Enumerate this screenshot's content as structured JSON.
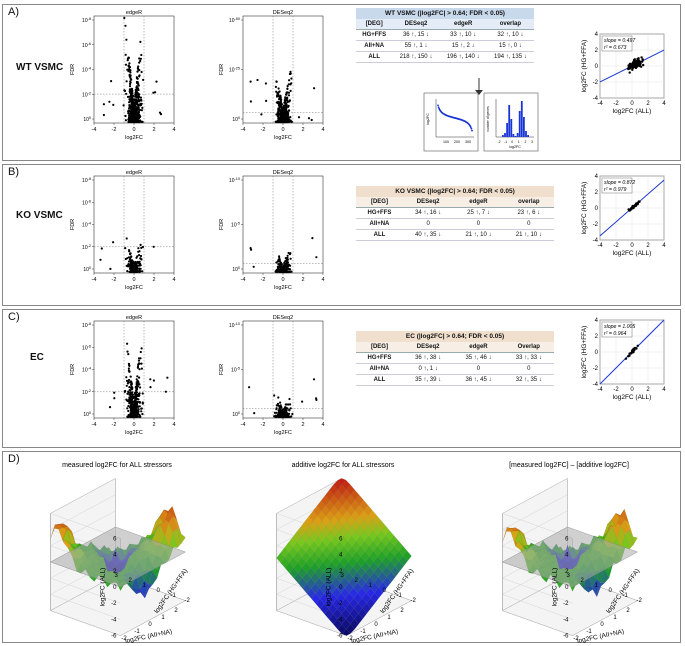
{
  "panels": {
    "A": {
      "label": "A)",
      "row_label": "WT VSMC"
    },
    "B": {
      "label": "B)",
      "row_label": "KO VSMC"
    },
    "C": {
      "label": "C)",
      "row_label": "EC"
    },
    "D": {
      "label": "D)"
    }
  },
  "volcano": {
    "edger_title": "edgeR",
    "deseq_title": "DESeq2",
    "xlabel": "log2FC",
    "ylabel": "FDR",
    "x_ticks": [
      "-4",
      "-2",
      "0",
      "2",
      "4"
    ],
    "edger_y_ticks": [
      "10-8",
      "10-6",
      "10-4",
      "10-2",
      "100"
    ],
    "deseq_y_ticks_A": [
      "10-50",
      "10-25",
      "100"
    ],
    "deseq_y_ticks_B": [
      "10-10",
      "10-5",
      "100"
    ],
    "deseq_y_ticks_C": [
      "10-10",
      "10-5",
      "100"
    ]
  },
  "tables": {
    "A": {
      "caption": "WT VSMC (|log2FC| > 0.64; FDR < 0.05)",
      "headers": [
        "[DEG]",
        "DESeq2",
        "edgeR",
        "overlap"
      ],
      "rows": [
        [
          "HG+FFS",
          "36 ↑, 15 ↓",
          "33 ↑, 10 ↓",
          "32 ↑, 10 ↓"
        ],
        [
          "AII+NA",
          "55 ↑, 1 ↓",
          "15 ↑, 2 ↓",
          "15 ↑, 0 ↓"
        ],
        [
          "ALL",
          "218 ↑, 150 ↓",
          "196 ↑, 140 ↓",
          "194 ↑, 135 ↓"
        ]
      ]
    },
    "B": {
      "caption": "KO VSMC (|log2FC| > 0.64; FDR < 0.05)",
      "headers": [
        "[DEG]",
        "DESeq2",
        "edgeR",
        "overlap"
      ],
      "rows": [
        [
          "HG+FFS",
          "34 ↑, 16 ↓",
          "25 ↑, 7 ↓",
          "23 ↑, 6 ↓"
        ],
        [
          "AII+NA",
          "0",
          "0",
          "0"
        ],
        [
          "ALL",
          "40 ↑, 35 ↓",
          "21 ↑, 10 ↓",
          "21 ↑, 10 ↓"
        ]
      ]
    },
    "C": {
      "caption": "EC (|log2FC| > 0.64; FDR < 0.05)",
      "headers": [
        "[DEG]",
        "DESeq2",
        "edgeR",
        "Overlap"
      ],
      "rows": [
        [
          "HG+FFS",
          "36 ↑, 38 ↓",
          "35 ↑, 46 ↓",
          "33 ↑, 33 ↓"
        ],
        [
          "AII+NA",
          "0 ↑, 1 ↓",
          "0",
          "0"
        ],
        [
          "ALL",
          "35 ↑, 39 ↓",
          "36 ↑, 45 ↓",
          "32 ↑, 35 ↓"
        ]
      ]
    }
  },
  "insets": {
    "left_ylabel": "log2FC",
    "left_xticks": [
      "100",
      "200",
      "300"
    ],
    "right_ylabel": "number of genes",
    "right_xlabel": "log2FC",
    "right_xticks": [
      "-2",
      "-1",
      "0",
      "1",
      "2",
      "3"
    ]
  },
  "chart_data": [
    {
      "type": "scatter",
      "panel": "A",
      "title": "",
      "xlabel": "log2FC (ALL)",
      "ylabel": "log2FC (HG+FFA)",
      "xlim": [
        -4,
        4
      ],
      "ylim": [
        -4,
        4
      ],
      "x_ticks": [
        "-4",
        "-2",
        "0",
        "2",
        "4"
      ],
      "y_ticks": [
        "-4",
        "-2",
        "0",
        "2",
        "4"
      ],
      "annotation": [
        "slope = 0.497",
        "r² = 0.673"
      ],
      "fit": {
        "slope": 0.497,
        "intercept": 0.0
      }
    },
    {
      "type": "scatter",
      "panel": "B",
      "title": "",
      "xlabel": "log2FC (ALL)",
      "ylabel": "log2FC (HG+FFA)",
      "xlim": [
        -4,
        4
      ],
      "ylim": [
        -4,
        4
      ],
      "x_ticks": [
        "-4",
        "-2",
        "0",
        "2",
        "4"
      ],
      "y_ticks": [
        "-4",
        "-2",
        "0",
        "2",
        "4"
      ],
      "annotation": [
        "slope = 0.872",
        "r² = 0.979"
      ],
      "fit": {
        "slope": 0.872,
        "intercept": 0.0
      }
    },
    {
      "type": "scatter",
      "panel": "C",
      "title": "",
      "xlabel": "log2FC (ALL)",
      "ylabel": "log2FC (HG+FFA)",
      "xlim": [
        -4,
        4
      ],
      "ylim": [
        -4,
        4
      ],
      "x_ticks": [
        "-4",
        "-2",
        "0",
        "2",
        "4"
      ],
      "y_ticks": [
        "-4",
        "-2",
        "0",
        "2",
        "4"
      ],
      "annotation": [
        "slope = 1.005",
        "r² = 0.964"
      ],
      "fit": {
        "slope": 1.005,
        "intercept": 0.0
      }
    },
    {
      "type": "surface",
      "panel": "D1",
      "title": "measured log2FC for ALL stressors",
      "zlabel": "log2FC (ALL)",
      "xlabel": "log2FC (AII+NA)",
      "ylabel": "log2FC (HG+FFA)",
      "z_ticks": [
        "6",
        "4",
        "2",
        "0",
        "-2",
        "-4",
        "-6"
      ],
      "x_ticks": [
        "2",
        "1",
        "0",
        "-1",
        "-2"
      ],
      "y_ticks": [
        "-2",
        "-1",
        "0",
        "1",
        "2",
        "3"
      ]
    },
    {
      "type": "surface",
      "panel": "D2",
      "title": "additive log2FC for ALL stressors",
      "zlabel": "log2FC (ALL)",
      "xlabel": "log2FC (AII+NA)",
      "ylabel": "log2FC (HG+FFA)",
      "z_ticks": [
        "6",
        "4",
        "2",
        "0",
        "-2",
        "-4",
        "-6"
      ],
      "x_ticks": [
        "2",
        "1",
        "0",
        "-1",
        "-2"
      ],
      "y_ticks": [
        "-2",
        "-1",
        "0",
        "1",
        "2",
        "3"
      ]
    },
    {
      "type": "surface",
      "panel": "D3",
      "title": "[measured log2FC] – [additive log2FC]",
      "zlabel": "log2FC (ALL)",
      "xlabel": "log2FC (AII+NA)",
      "ylabel": "log2FC (HG+FFA)",
      "z_ticks": [
        "6",
        "4",
        "2",
        "0",
        "-2",
        "-4",
        "-6"
      ],
      "x_ticks": [
        "2",
        "1",
        "0",
        "-1",
        "-2"
      ],
      "y_ticks": [
        "-2",
        "-1",
        "0",
        "1",
        "2",
        "3"
      ]
    }
  ],
  "colors": {
    "line": "#1a35d4",
    "point": "#000000",
    "border": "#888888",
    "gridgray": "#aaaaaa"
  }
}
